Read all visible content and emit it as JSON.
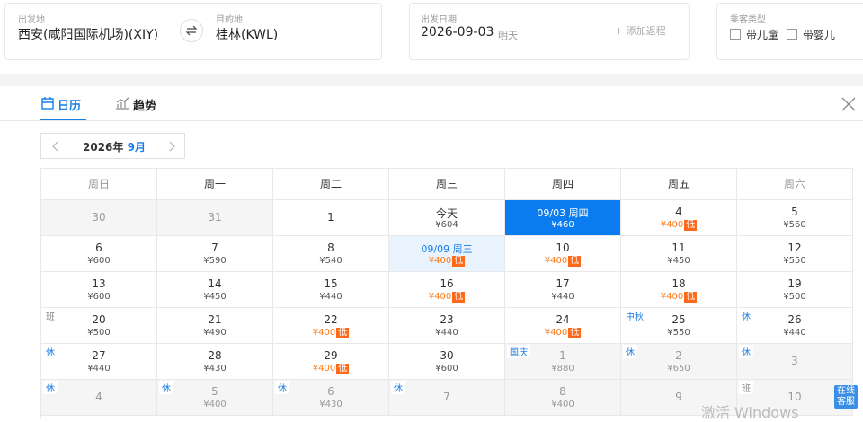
{
  "search": {
    "from": {
      "label": "出发地",
      "value": "西安(咸阳国际机场)(XIY)"
    },
    "to": {
      "label": "目的地",
      "value": "桂林(KWL)"
    },
    "date": {
      "label": "出发日期",
      "value": "2026-09-03",
      "note": "明天"
    },
    "add_return": "+ 添加返程",
    "passenger": {
      "label": "乘客类型",
      "options": [
        "带儿童",
        "带婴儿"
      ]
    }
  },
  "calendar": {
    "tabs": [
      "日历",
      "趋势"
    ],
    "active_tab": 0,
    "year": "2026年",
    "month": "9月",
    "weekdays": [
      "周日",
      "周一",
      "周二",
      "周三",
      "周四",
      "周五",
      "周六"
    ],
    "rows": [
      [
        {
          "day": "30",
          "muted": true
        },
        {
          "day": "31",
          "muted": true
        },
        {
          "day": "1"
        },
        {
          "day": "今天",
          "price": "¥604"
        },
        {
          "day": "09/03 周四",
          "price": "¥460",
          "selected": true
        },
        {
          "day": "4",
          "price": "¥400",
          "tag": "低"
        },
        {
          "day": "5",
          "price": "¥560"
        }
      ],
      [
        {
          "day": "6",
          "price": "¥600"
        },
        {
          "day": "7",
          "price": "¥590"
        },
        {
          "day": "8",
          "price": "¥540"
        },
        {
          "day": "09/09 周三",
          "price": "¥400",
          "tag": "低",
          "hover": true
        },
        {
          "day": "10",
          "price": "¥400",
          "tag": "低"
        },
        {
          "day": "11",
          "price": "¥450"
        },
        {
          "day": "12",
          "price": "¥550"
        }
      ],
      [
        {
          "day": "13",
          "price": "¥600"
        },
        {
          "day": "14",
          "price": "¥450"
        },
        {
          "day": "15",
          "price": "¥440"
        },
        {
          "day": "16",
          "price": "¥400",
          "tag": "低"
        },
        {
          "day": "17",
          "price": "¥440"
        },
        {
          "day": "18",
          "price": "¥400",
          "tag": "低"
        },
        {
          "day": "19",
          "price": "¥500"
        }
      ],
      [
        {
          "day": "20",
          "price": "¥500",
          "badge": "班"
        },
        {
          "day": "21",
          "price": "¥490"
        },
        {
          "day": "22",
          "price": "¥400",
          "tag": "低"
        },
        {
          "day": "23",
          "price": "¥440"
        },
        {
          "day": "24",
          "price": "¥400",
          "tag": "低"
        },
        {
          "day": "25",
          "price": "¥550",
          "badge": "中秋"
        },
        {
          "day": "26",
          "price": "¥440",
          "badge": "休"
        }
      ],
      [
        {
          "day": "27",
          "price": "¥440",
          "badge": "休"
        },
        {
          "day": "28",
          "price": "¥430"
        },
        {
          "day": "29",
          "price": "¥400",
          "tag": "低"
        },
        {
          "day": "30",
          "price": "¥600"
        },
        {
          "day": "1",
          "price": "¥880",
          "badge": "国庆",
          "muted": true
        },
        {
          "day": "2",
          "price": "¥650",
          "badge": "休",
          "muted": true
        },
        {
          "day": "3",
          "badge": "休",
          "muted": true
        }
      ],
      [
        {
          "day": "4",
          "badge": "休",
          "muted": true
        },
        {
          "day": "5",
          "price": "¥400",
          "badge": "休",
          "muted": true
        },
        {
          "day": "6",
          "price": "¥430",
          "badge": "休",
          "muted": true
        },
        {
          "day": "7",
          "badge": "休",
          "muted": true
        },
        {
          "day": "8",
          "price": "¥400",
          "muted": true
        },
        {
          "day": "9",
          "muted": true
        },
        {
          "day": "10",
          "badge": "班",
          "muted": true
        }
      ]
    ]
  },
  "watermark": "激活 Windows",
  "service": "在线客服"
}
